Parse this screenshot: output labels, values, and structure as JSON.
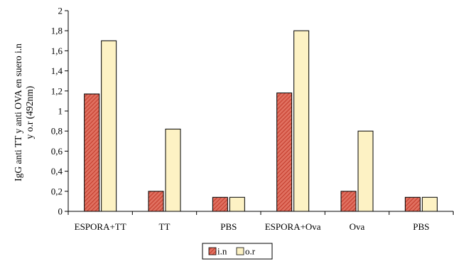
{
  "chart_data": {
    "type": "bar",
    "categories": [
      "ESPORA+TT",
      "TT",
      "PBS",
      "ESPORA+Ova",
      "Ova",
      "PBS"
    ],
    "series": [
      {
        "name": "i.n",
        "values": [
          1.17,
          0.2,
          0.14,
          1.18,
          0.2,
          0.14
        ]
      },
      {
        "name": "o.r",
        "values": [
          1.7,
          0.82,
          0.14,
          1.8,
          0.8,
          0.14
        ]
      }
    ],
    "title": "",
    "xlabel": "",
    "ylabel_lines": [
      "IgG anti TT y anti OVA en suero i.n",
      "y o.r (492nm)"
    ],
    "ylim": [
      0,
      2
    ],
    "yticks": [
      0,
      0.2,
      0.4,
      0.6,
      0.8,
      1,
      1.2,
      1.4,
      1.6,
      1.8,
      2
    ],
    "ytick_labels": [
      "0",
      "0,2",
      "0,4",
      "0,6",
      "0,8",
      "1",
      "1,2",
      "1,4",
      "1,6",
      "1,8",
      "2"
    ],
    "grid": false,
    "legend_position": "bottom",
    "colors": {
      "i.n": "#e07060",
      "i.n_hatch": "#c23a2a",
      "o.r": "#fdf2c4",
      "edge": "#000000"
    }
  }
}
